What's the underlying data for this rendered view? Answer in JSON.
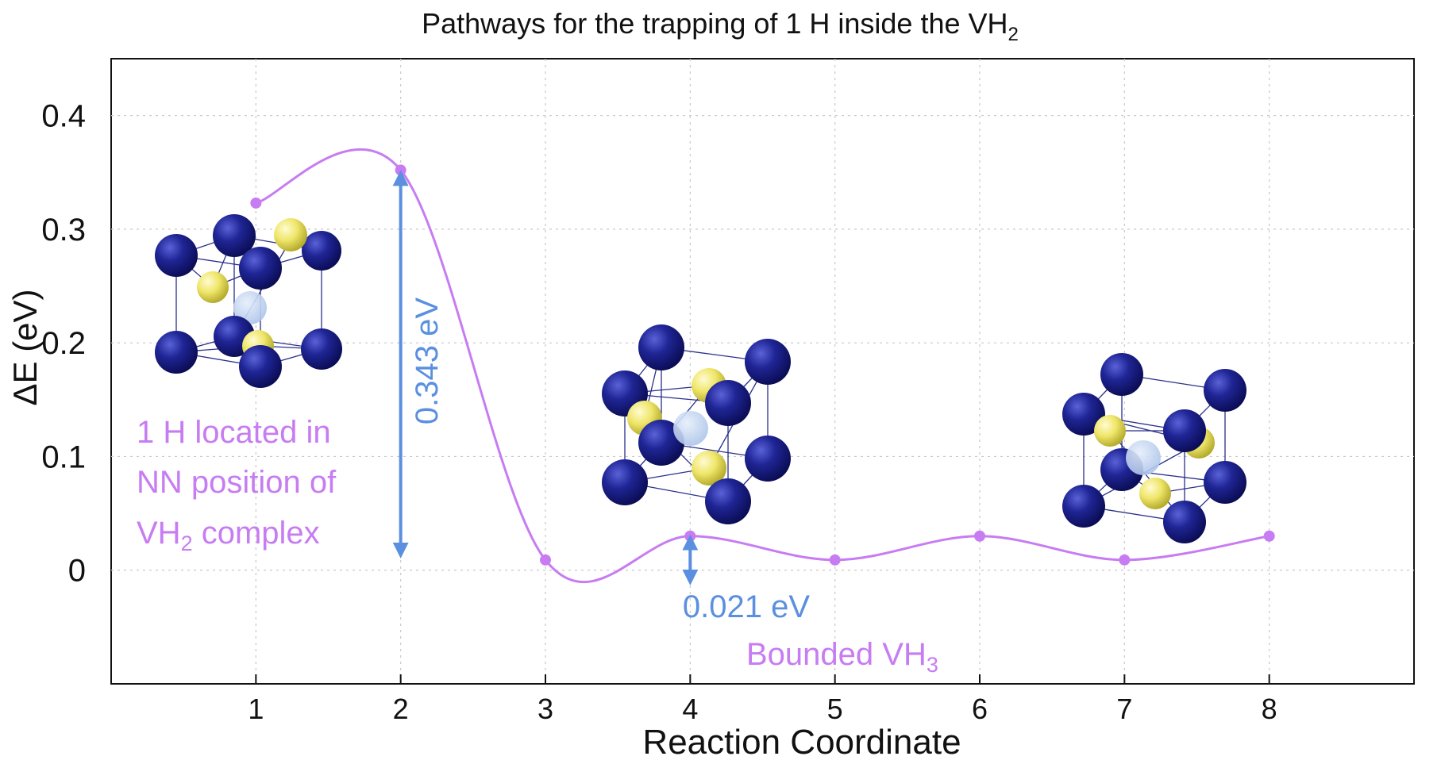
{
  "chart_data": {
    "type": "line",
    "title": "Pathways for the trapping of 1 H inside the VH",
    "title_sub": "2",
    "xlabel": "Reaction Coordinate",
    "ylabel": "ΔE (eV)",
    "xlim": [
      0,
      9
    ],
    "ylim": [
      -0.1,
      0.45
    ],
    "x": [
      1,
      2,
      3,
      4,
      5,
      6,
      7,
      8
    ],
    "y": [
      0.323,
      0.352,
      0.009,
      0.03,
      0.009,
      0.03,
      0.009,
      0.03
    ],
    "series_color": "#c77cf2",
    "xticks": [
      "1",
      "2",
      "3",
      "4",
      "5",
      "6",
      "7",
      "8"
    ],
    "yticks": [
      {
        "value": 0.4,
        "label": "0.4"
      },
      {
        "value": 0.3,
        "label": "0.3"
      },
      {
        "value": 0.2,
        "label": "0.2"
      },
      {
        "value": 0.1,
        "label": "0.1"
      },
      {
        "value": 0.0,
        "label": "0"
      }
    ],
    "grid": true,
    "annotations": {
      "barrier_main": {
        "label": "0.343 eV",
        "x": 2,
        "from": 0.009,
        "to": 0.352,
        "color": "#5b8fe0"
      },
      "barrier_small": {
        "label": "0.021 eV",
        "x": 4,
        "from": 0.009,
        "to": 0.03,
        "color": "#5b8fe0"
      },
      "initial_state": {
        "line1": "1 H located in",
        "line2": "NN position of",
        "line3_pre": "VH",
        "line3_sub": "2",
        "line3_post": " complex",
        "color": "#c77cf2"
      },
      "final_state": {
        "pre": "Bounded VH",
        "sub": "3",
        "color": "#c77cf2"
      }
    },
    "atom_colors": {
      "vanadium": "#1a1e8c",
      "hydrogen": "#efe66a",
      "vacancy": "#b9cfee"
    }
  }
}
